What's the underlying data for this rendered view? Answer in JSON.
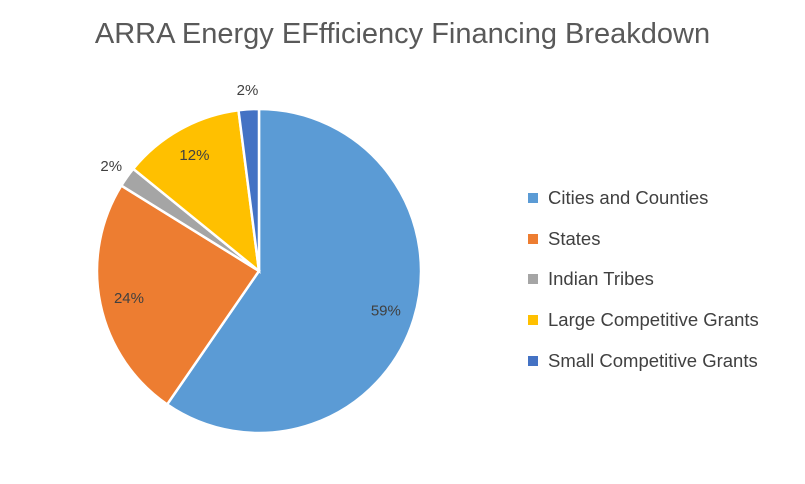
{
  "chart_data": {
    "type": "pie",
    "title": "ARRA Energy EFfficiency Financing Breakdown",
    "categories": [
      "Cities and Counties",
      "States",
      "Indian Tribes",
      "Large Competitive Grants",
      "Small Competitive Grants"
    ],
    "values": [
      59,
      24,
      2,
      12,
      2
    ],
    "labels": [
      "59%",
      "24%",
      "2%",
      "12%",
      "2%"
    ],
    "colors": [
      "#5B9BD5",
      "#ED7D31",
      "#A5A5A5",
      "#FFC000",
      "#4472C4"
    ],
    "start": "top, clockwise",
    "legend_position": "right"
  }
}
